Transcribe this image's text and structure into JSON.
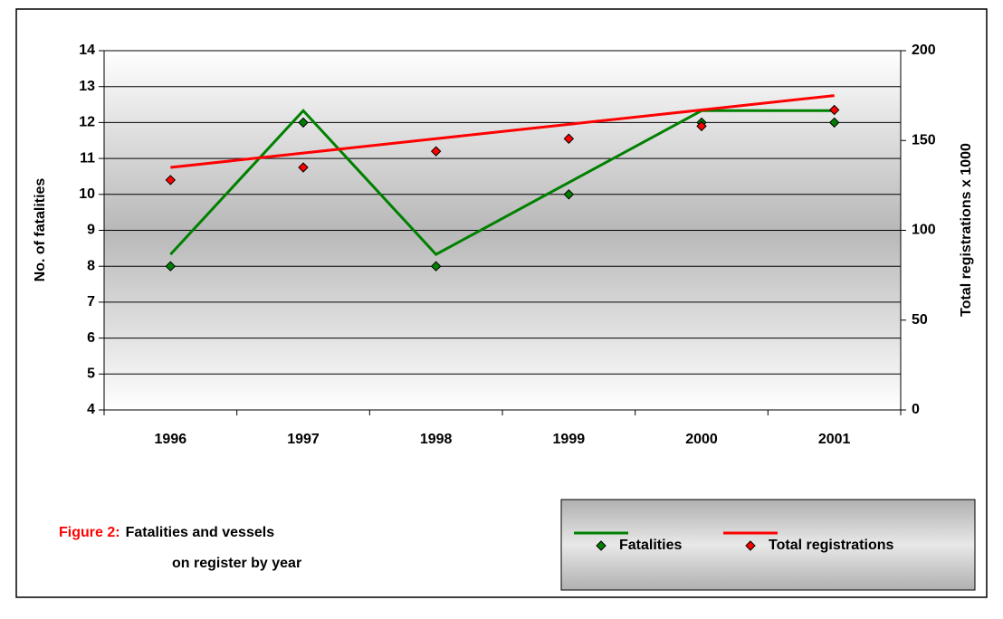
{
  "chart_data": {
    "type": "line",
    "categories": [
      "1996",
      "1997",
      "1998",
      "1999",
      "2000",
      "2001"
    ],
    "ylabel": "No. of fatalities",
    "y2label": "Total registrations x 1000",
    "ylim": [
      4,
      14
    ],
    "yticks": [
      4,
      5,
      6,
      7,
      8,
      9,
      10,
      11,
      12,
      13,
      14
    ],
    "y2lim": [
      0,
      200
    ],
    "y2ticks": [
      0,
      50,
      100,
      150,
      200
    ],
    "grid": true,
    "series": [
      {
        "name": "Fatalities",
        "color": "#008000",
        "axis": "y",
        "values": [
          8,
          12,
          8,
          10,
          12,
          12
        ],
        "line_values": [
          8.33,
          12.33,
          8.33,
          10.33,
          12.33,
          12.33
        ]
      },
      {
        "name": "Total registrations",
        "color": "#ff0000",
        "axis": "y2",
        "values": [
          128,
          135,
          144,
          151,
          158,
          167
        ],
        "line_values": [
          135,
          143,
          151,
          159,
          167,
          175
        ]
      }
    ],
    "caption": {
      "label": "Figure 2:",
      "lines": [
        "Fatalities and vessels",
        "on register by year"
      ]
    }
  }
}
